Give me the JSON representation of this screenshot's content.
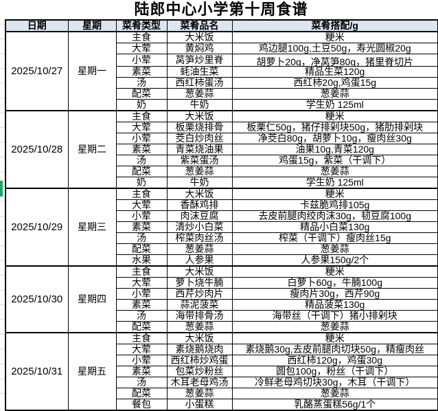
{
  "title": "陆郎中心小学第十周食谱",
  "colors": {
    "header_bg": "#DCE6F1",
    "selection_green": "#21A366",
    "grid_border": "#000000"
  },
  "columns": [
    "日期",
    "星期",
    "菜肴类型",
    "菜肴品名",
    "菜肴搭配/g"
  ],
  "days": [
    {
      "date": "2025/10/27",
      "weekday": "星期一",
      "rows": [
        {
          "type": "主食",
          "dish": "大米饭",
          "mix": "粳米"
        },
        {
          "type": "大荤",
          "dish": "黄焖鸡",
          "mix": "鸡边腿100g,土豆50g，寿光圆椒20g"
        },
        {
          "type": "小荤",
          "dish": "莴笋炒里脊",
          "mix": "胡萝卜20g，净莴笋80g，猪里脊切片"
        },
        {
          "type": "素菜",
          "dish": "蚝油生菜",
          "mix": "精品生菜120g"
        },
        {
          "type": "汤",
          "dish": "西红柿蛋汤",
          "mix": "西红柿20g,鸡蛋15g"
        },
        {
          "type": "配菜",
          "dish": "葱姜蒜",
          "mix": "葱姜蒜"
        },
        {
          "type": "奶",
          "dish": "牛奶",
          "mix": "学生奶 125ml"
        }
      ]
    },
    {
      "date": "2025/10/28",
      "weekday": "星期二",
      "rows": [
        {
          "type": "主食",
          "dish": "大米饭",
          "mix": "粳米"
        },
        {
          "type": "大荤",
          "dish": "板栗烧排骨",
          "mix": "板栗仁50g，猪仔排剁块50g，猪肋排剁块"
        },
        {
          "type": "小荤",
          "dish": "茭白炒肉丝",
          "mix": "净茭白80g，胡萝卜10g，瘦肉丝30g"
        },
        {
          "type": "素菜",
          "dish": "青菜烧油果",
          "mix": "油果10g,青菜120g"
        },
        {
          "type": "汤",
          "dish": "紫菜蛋汤",
          "mix": "鸡蛋15g，紫菜（干调下）"
        },
        {
          "type": "配菜",
          "dish": "葱姜蒜",
          "mix": "葱姜蒜"
        },
        {
          "type": "奶",
          "dish": "牛奶",
          "mix": "学生奶 125ml"
        }
      ]
    },
    {
      "date": "2025/10/29",
      "weekday": "星期三",
      "rows": [
        {
          "type": "主食",
          "dish": "大米饭",
          "mix": "粳米"
        },
        {
          "type": "大荤",
          "dish": "香酥鸡排",
          "mix": "卡兹脆鸡排105g"
        },
        {
          "type": "小荤",
          "dish": "肉沫豆腐",
          "mix": "去皮前腿肉绞肉沫30g，韧豆腐100g"
        },
        {
          "type": "素菜",
          "dish": "清炒小白菜",
          "mix": "精品小白菜130g"
        },
        {
          "type": "汤",
          "dish": "榨菜肉丝汤",
          "mix": "榨菜（干调下）瘦肉丝15g"
        },
        {
          "type": "配菜",
          "dish": "葱姜蒜",
          "mix": "葱姜蒜"
        },
        {
          "type": "水果",
          "dish": "人参果",
          "mix": "人参果150g/2个"
        }
      ]
    },
    {
      "date": "2025/10/30",
      "weekday": "星期四",
      "rows": [
        {
          "type": "主食",
          "dish": "大米饭",
          "mix": "粳米"
        },
        {
          "type": "大荤",
          "dish": "萝卜烧牛腩",
          "mix": "白萝卜60g，牛腩100g"
        },
        {
          "type": "小荤",
          "dish": "西芹炒肉片",
          "mix": "瘦肉片30g，西芹90g"
        },
        {
          "type": "素菜",
          "dish": "蒜泥菠菜",
          "mix": "精品菠菜130g"
        },
        {
          "type": "汤",
          "dish": "海带排骨汤",
          "mix": "海带丝（干调下）猪小排剁块"
        },
        {
          "type": "配菜",
          "dish": "葱姜蒜",
          "mix": "葱姜蒜"
        }
      ]
    },
    {
      "date": "2025/10/31",
      "weekday": "星期五",
      "rows": [
        {
          "type": "主食",
          "dish": "大米饭",
          "mix": "粳米"
        },
        {
          "type": "大荤",
          "dish": "素烧鹅烧肉",
          "mix": "素烧鹅30g,去皮前腿肉切块50g，精瘦肉丝"
        },
        {
          "type": "小荤",
          "dish": "西红柿炒鸡蛋",
          "mix": "西红柿120g，鸡蛋30g"
        },
        {
          "type": "素菜",
          "dish": "包菜炒粉丝",
          "mix": "圆包100g，粉丝（干调下）"
        },
        {
          "type": "汤",
          "dish": "木耳老母鸡汤",
          "mix": "冷鲜老母鸡切块30g，木耳（干调下）"
        },
        {
          "type": "配菜",
          "dish": "葱姜蒜",
          "mix": "葱姜蒜"
        },
        {
          "type": "餐包",
          "dish": "小蛋糕",
          "mix": "乳酪蒸蛋糕56g/1个"
        }
      ]
    }
  ]
}
